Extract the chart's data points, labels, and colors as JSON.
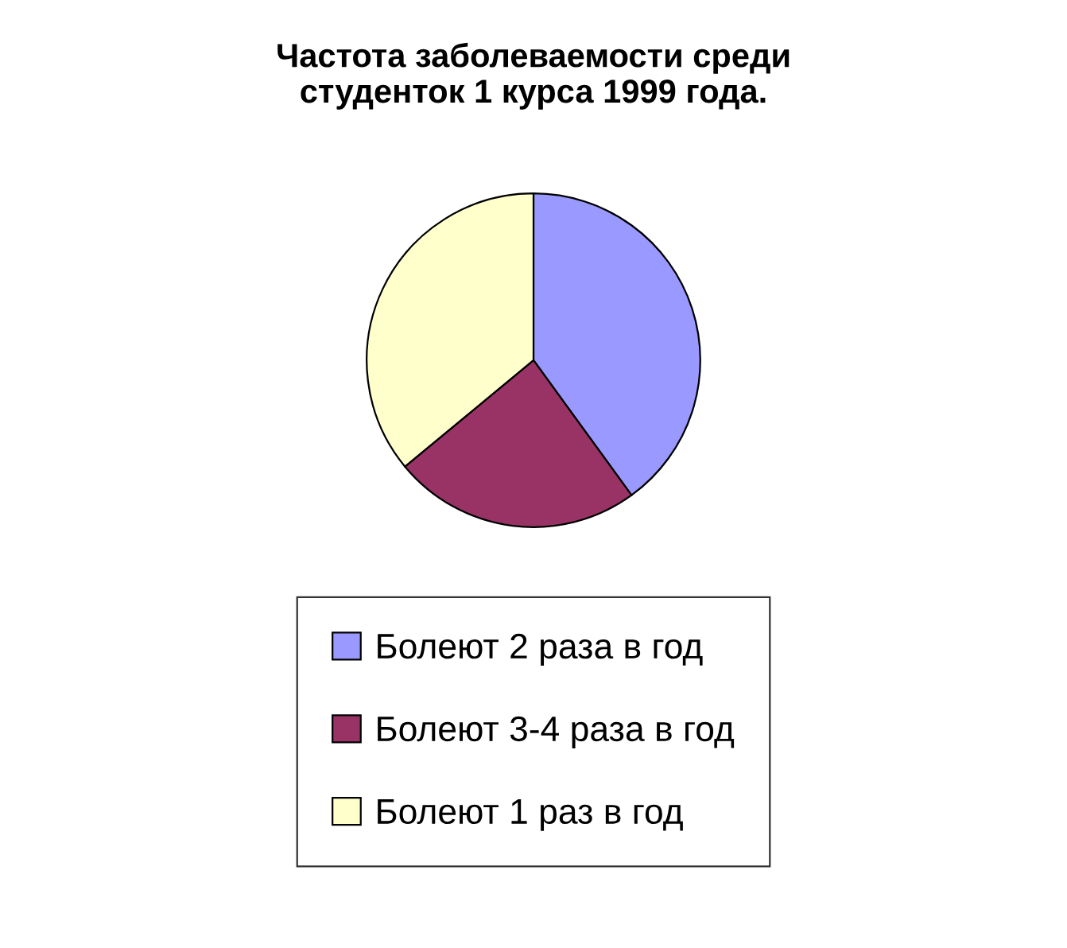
{
  "chart_data": {
    "type": "pie",
    "title": "Частота заболеваемости среди\nстуденток 1 курса 1999 года.",
    "categories": [
      "Болеют 2 раза в год",
      "Болеют 3-4 раза в год",
      "Болеют 1 раз в год"
    ],
    "values": [
      40,
      24,
      36
    ],
    "colors": [
      "#9999ff",
      "#993366",
      "#ffffcc"
    ],
    "legend": "bottom"
  }
}
